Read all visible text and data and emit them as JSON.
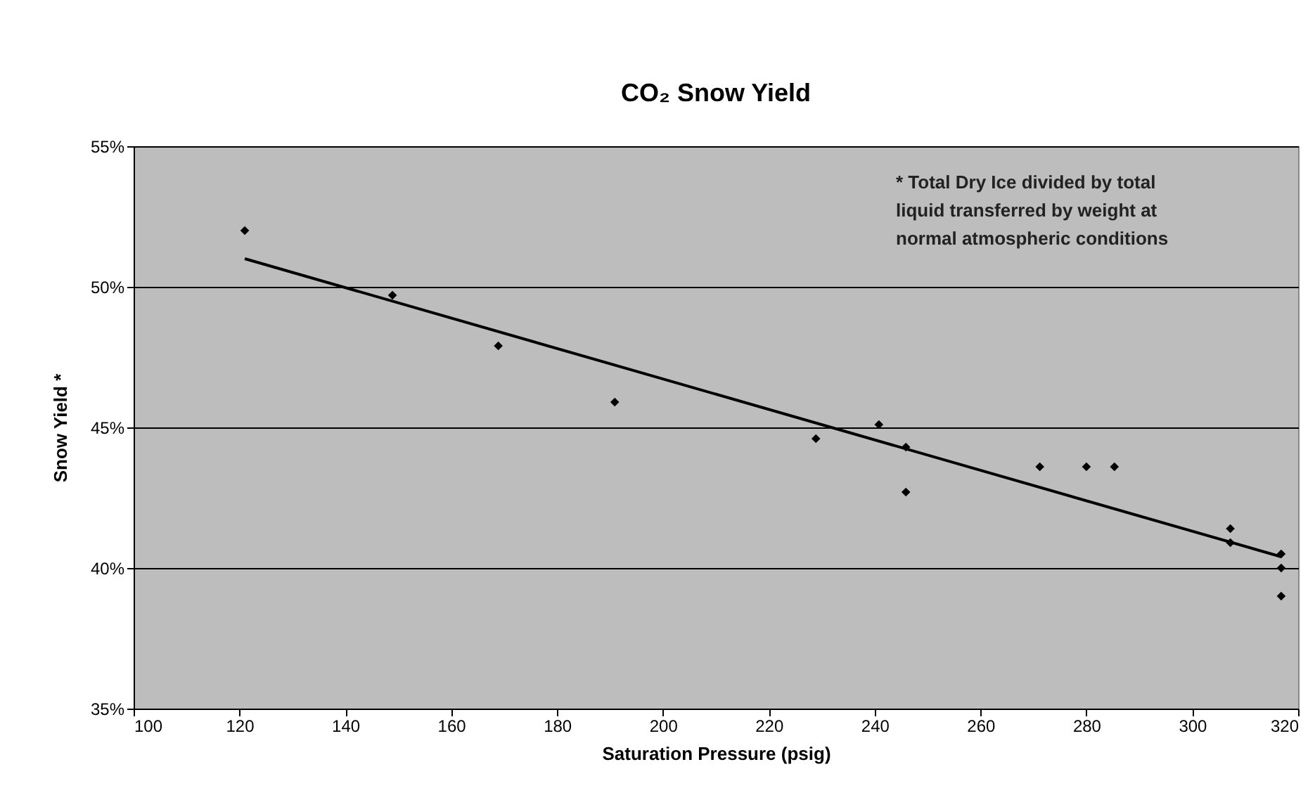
{
  "chart_data": {
    "type": "scatter",
    "title": "CO₂ Snow Yield",
    "xlabel": "Saturation Pressure (psig)",
    "ylabel": "Snow Yield *",
    "annotations": [
      "* Total Dry Ice divided by total\nliquid transferred by weight at\nnormal atmospheric conditions"
    ],
    "x": [
      121.0,
      148.9,
      168.9,
      190.9,
      228.9,
      240.8,
      245.9,
      245.9,
      271.2,
      280.0,
      285.3,
      307.2,
      307.2,
      316.8,
      316.8,
      316.8
    ],
    "series": [
      {
        "color": "#000000",
        "marker": "diamond",
        "values": [
          52.0,
          49.7,
          47.9,
          45.9,
          44.6,
          45.1,
          44.3,
          42.7,
          43.6,
          43.6,
          43.6,
          41.4,
          40.9,
          40.5,
          40.0,
          39.0
        ]
      },
      {
        "type": "line",
        "color": "#000000",
        "line_style": "solid",
        "x": [
          121.0,
          316.8
        ],
        "values": [
          51.0,
          40.4
        ]
      }
    ],
    "xlim": [
      100,
      320
    ],
    "xticks": [
      100,
      120,
      140,
      160,
      180,
      200,
      220,
      240,
      260,
      280,
      300,
      320
    ],
    "ylim": [
      35,
      55
    ],
    "yticks": [
      {
        "value": 35,
        "label": "35%"
      },
      {
        "value": 40,
        "label": "40%"
      },
      {
        "value": 45,
        "label": "45%"
      },
      {
        "value": 50,
        "label": "50%"
      },
      {
        "value": 55,
        "label": "55%"
      }
    ],
    "grid": "y"
  }
}
